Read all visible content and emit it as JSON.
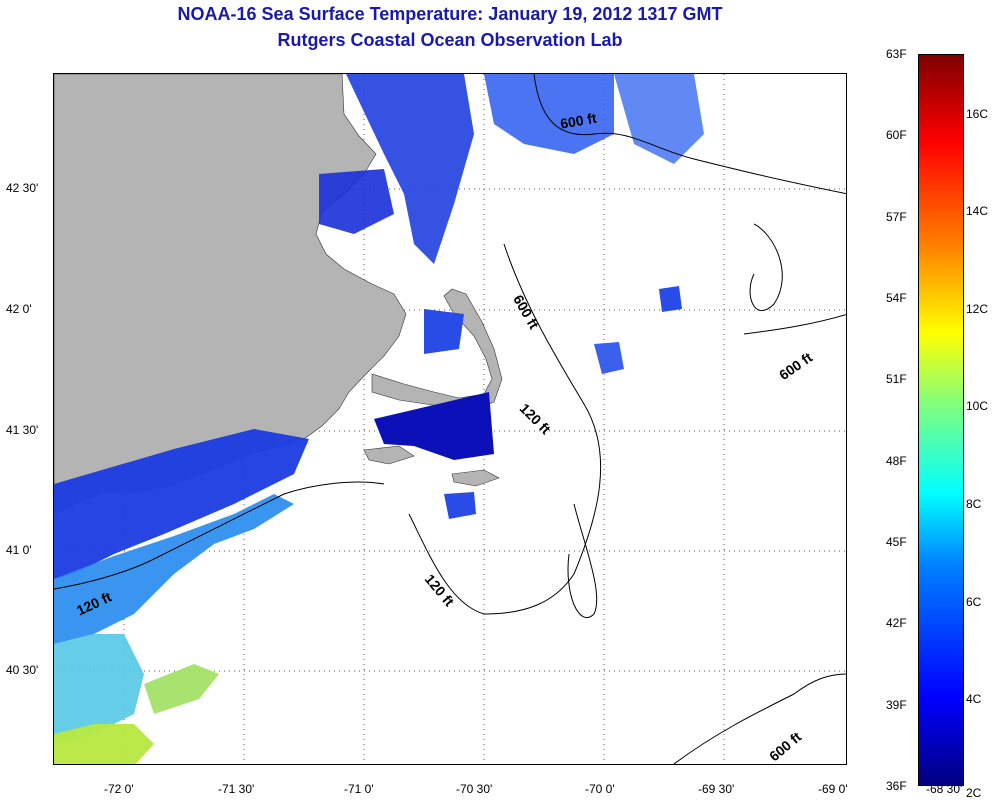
{
  "header": {
    "title": "NOAA-16 Sea Surface Temperature:  January 19, 2012 1317 GMT",
    "subtitle": "Rutgers Coastal Ocean Observation Lab"
  },
  "map": {
    "longitude_labels": [
      "-72 0'",
      "-71 30'",
      "-71 0'",
      "-70 30'",
      "-70 0'",
      "-69 30'",
      "-69 0'",
      "-68 30'"
    ],
    "latitude_labels": [
      "42 30'",
      "42 0'",
      "41 30'",
      "41 0'",
      "40 30'"
    ],
    "contour_labels": [
      "600 ft",
      "600 ft",
      "600 ft",
      "600 ft",
      "120 ft",
      "120 ft",
      "120 ft"
    ],
    "colors": {
      "land": "#b4b4b4",
      "ocean": "#ffffff"
    }
  },
  "colorbar": {
    "fahrenheit": [
      "63F",
      "60F",
      "57F",
      "54F",
      "51F",
      "48F",
      "45F",
      "42F",
      "39F",
      "36F"
    ],
    "celsius": [
      "16C",
      "14C",
      "12C",
      "10C",
      "8C",
      "6C",
      "4C",
      "2C"
    ],
    "range_f": [
      36,
      63
    ],
    "range_c": [
      2,
      17
    ]
  }
}
